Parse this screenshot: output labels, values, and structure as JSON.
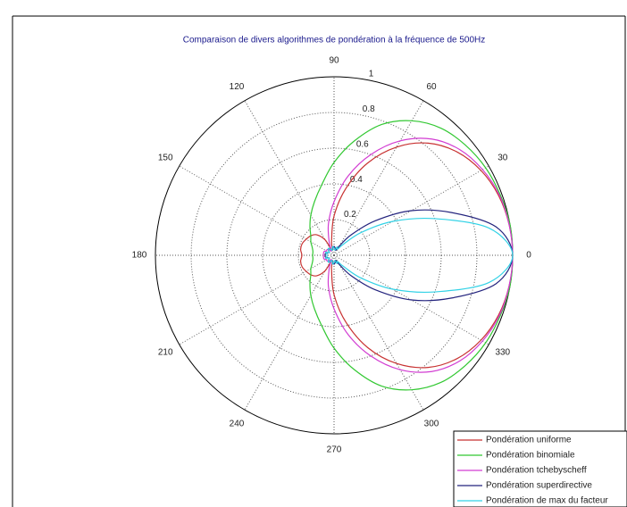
{
  "chart_data": {
    "type": "polar",
    "title": "Comparaison de divers algorithmes de pondération  à la fréquence de 500Hz",
    "theta": [
      0,
      10,
      20,
      30,
      40,
      50,
      60,
      70,
      80,
      90,
      100,
      110,
      120,
      130,
      140,
      150,
      160,
      170,
      180,
      190,
      200,
      210,
      220,
      230,
      240,
      250,
      260,
      270,
      280,
      290,
      300,
      310,
      320,
      330,
      340,
      350
    ],
    "rlim": [
      0,
      1
    ],
    "rticks": [
      0.2,
      0.4,
      0.6,
      0.8,
      1
    ],
    "thetaticks": [
      0,
      30,
      60,
      90,
      120,
      150,
      180,
      210,
      240,
      270,
      300,
      330
    ],
    "grid": true,
    "legend": "lower right",
    "series": [
      {
        "name": "Pondération uniforme",
        "color": "#c83232",
        "values": [
          1,
          0.995,
          0.98,
          0.95,
          0.9,
          0.82,
          0.7,
          0.55,
          0.38,
          0.22,
          0.08,
          0.03,
          0.1,
          0.15,
          0.17,
          0.18,
          0.19,
          0.19,
          0.18,
          0.19,
          0.19,
          0.18,
          0.17,
          0.15,
          0.1,
          0.03,
          0.08,
          0.22,
          0.38,
          0.55,
          0.7,
          0.82,
          0.9,
          0.95,
          0.98,
          0.995
        ]
      },
      {
        "name": "Pondération binomiale",
        "color": "#32c832",
        "values": [
          1,
          1,
          0.99,
          0.98,
          0.96,
          0.93,
          0.87,
          0.78,
          0.65,
          0.52,
          0.4,
          0.32,
          0.26,
          0.21,
          0.17,
          0.15,
          0.13,
          0.12,
          0.12,
          0.12,
          0.13,
          0.15,
          0.17,
          0.21,
          0.26,
          0.32,
          0.4,
          0.52,
          0.65,
          0.78,
          0.87,
          0.93,
          0.96,
          0.98,
          0.99,
          1
        ]
      },
      {
        "name": "Pondération tchebyscheff",
        "color": "#d23cd2",
        "values": [
          1,
          0.995,
          0.985,
          0.96,
          0.92,
          0.85,
          0.74,
          0.6,
          0.45,
          0.3,
          0.18,
          0.08,
          0.03,
          0.04,
          0.05,
          0.05,
          0.06,
          0.06,
          0.06,
          0.06,
          0.06,
          0.05,
          0.05,
          0.04,
          0.03,
          0.08,
          0.18,
          0.3,
          0.45,
          0.6,
          0.74,
          0.85,
          0.92,
          0.96,
          0.985,
          0.995
        ]
      },
      {
        "name": "Pondération superdirective",
        "color": "#23237d",
        "values": [
          1,
          0.92,
          0.7,
          0.5,
          0.3,
          0.15,
          0.06,
          0.03,
          0.04,
          0.05,
          0.04,
          0.03,
          0.04,
          0.05,
          0.04,
          0.03,
          0.04,
          0.05,
          0.05,
          0.05,
          0.04,
          0.03,
          0.04,
          0.05,
          0.04,
          0.03,
          0.04,
          0.05,
          0.04,
          0.03,
          0.06,
          0.15,
          0.3,
          0.5,
          0.7,
          0.92
        ]
      },
      {
        "name": "Pondération de max du facteur",
        "color": "#32d2e6",
        "values": [
          1,
          0.88,
          0.6,
          0.38,
          0.2,
          0.08,
          0.04,
          0.05,
          0.03,
          0.04,
          0.05,
          0.03,
          0.04,
          0.05,
          0.04,
          0.03,
          0.05,
          0.04,
          0.04,
          0.04,
          0.05,
          0.03,
          0.04,
          0.05,
          0.04,
          0.03,
          0.05,
          0.04,
          0.03,
          0.05,
          0.04,
          0.08,
          0.2,
          0.38,
          0.6,
          0.88
        ]
      }
    ]
  }
}
